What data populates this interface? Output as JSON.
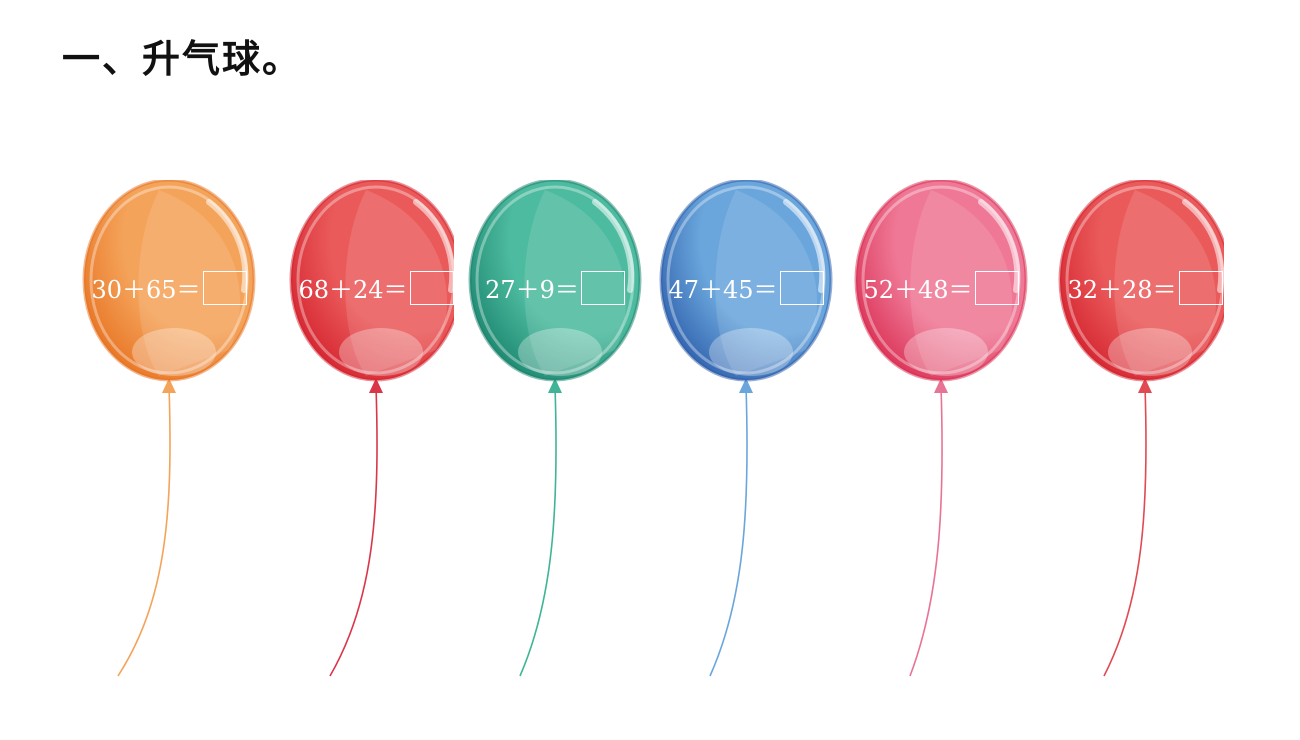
{
  "title": "一、升气球。",
  "balloons": [
    {
      "expr": "30＋65＝",
      "answer": "",
      "color": "#f4a35a",
      "dark": "#e66f1e",
      "string": "#f4a35a"
    },
    {
      "expr": "68＋24＝",
      "answer": "",
      "color": "#ea5a5a",
      "dark": "#d21f2b",
      "string": "#d9364a"
    },
    {
      "expr": "27＋9＝",
      "answer": "",
      "color": "#4dbb9f",
      "dark": "#17806a",
      "string": "#3fb496"
    },
    {
      "expr": "47＋45＝",
      "answer": "",
      "color": "#6aa6dc",
      "dark": "#2a5aa8",
      "string": "#6aa6dc"
    },
    {
      "expr": "52＋48＝",
      "answer": "",
      "color": "#ef7896",
      "dark": "#d82a4e",
      "string": "#e77395"
    },
    {
      "expr": "32＋28＝",
      "answer": "",
      "color": "#ea5a5a",
      "dark": "#d21f2b",
      "string": "#e04a52"
    }
  ]
}
